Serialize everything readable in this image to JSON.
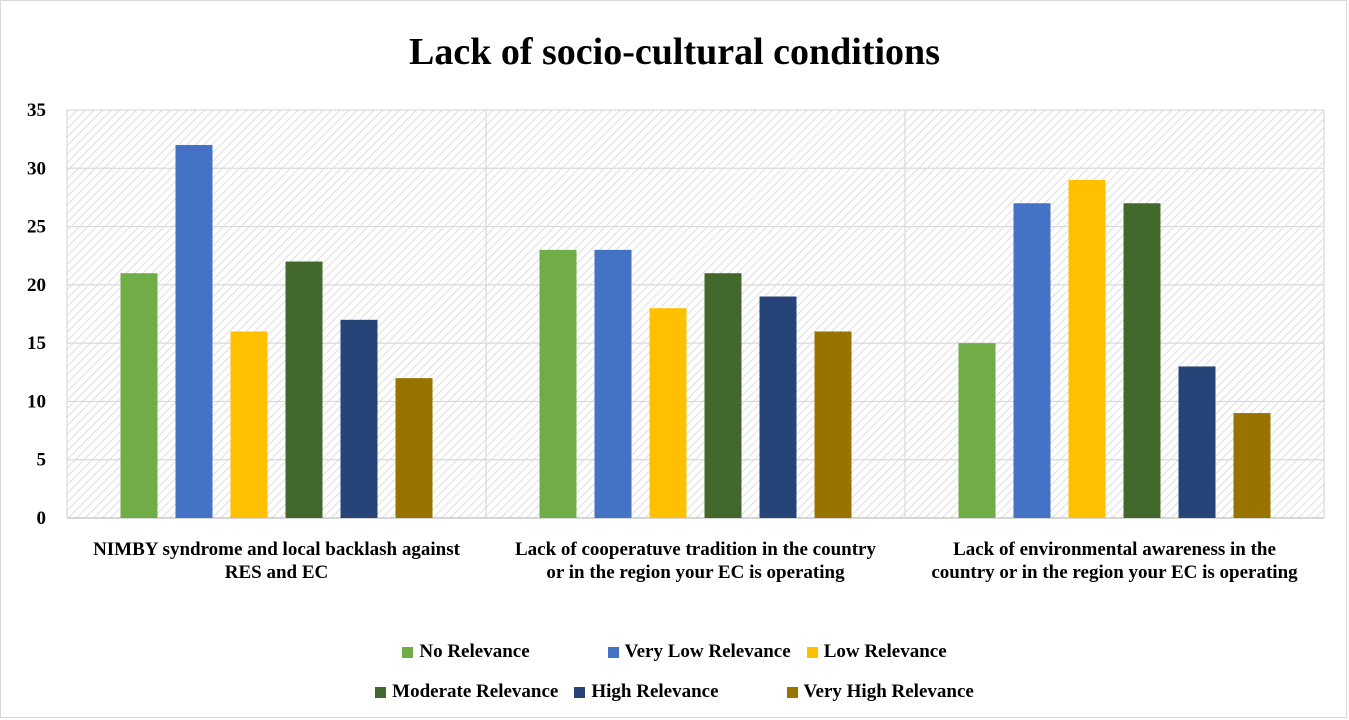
{
  "chart_data": {
    "type": "bar",
    "title": "Lack of socio-cultural conditions",
    "categories": [
      "NIMBY syndrome and local backlash against RES and EC",
      "Lack of cooperatuve tradition in the country or in the region your EC is operating",
      "Lack of environmental awareness in the country or in the region your EC is operating"
    ],
    "series": [
      {
        "name": "No Relevance",
        "color": "#70ad47",
        "values": [
          21,
          23,
          15
        ]
      },
      {
        "name": "Very Low Relevance",
        "color": "#4472c4",
        "values": [
          32,
          23,
          27
        ]
      },
      {
        "name": "Low Relevance",
        "color": "#ffc000",
        "values": [
          16,
          18,
          29
        ]
      },
      {
        "name": "Moderate Relevance",
        "color": "#43682b",
        "values": [
          22,
          21,
          27
        ]
      },
      {
        "name": "High Relevance",
        "color": "#264478",
        "values": [
          17,
          19,
          13
        ]
      },
      {
        "name": "Very High Relevance",
        "color": "#997300",
        "values": [
          12,
          16,
          9
        ]
      }
    ],
    "yticks": [
      "0",
      "5",
      "10",
      "15",
      "20",
      "25",
      "30",
      "35"
    ],
    "ylim": [
      0,
      35
    ],
    "grid": true,
    "legend": "bottom"
  }
}
